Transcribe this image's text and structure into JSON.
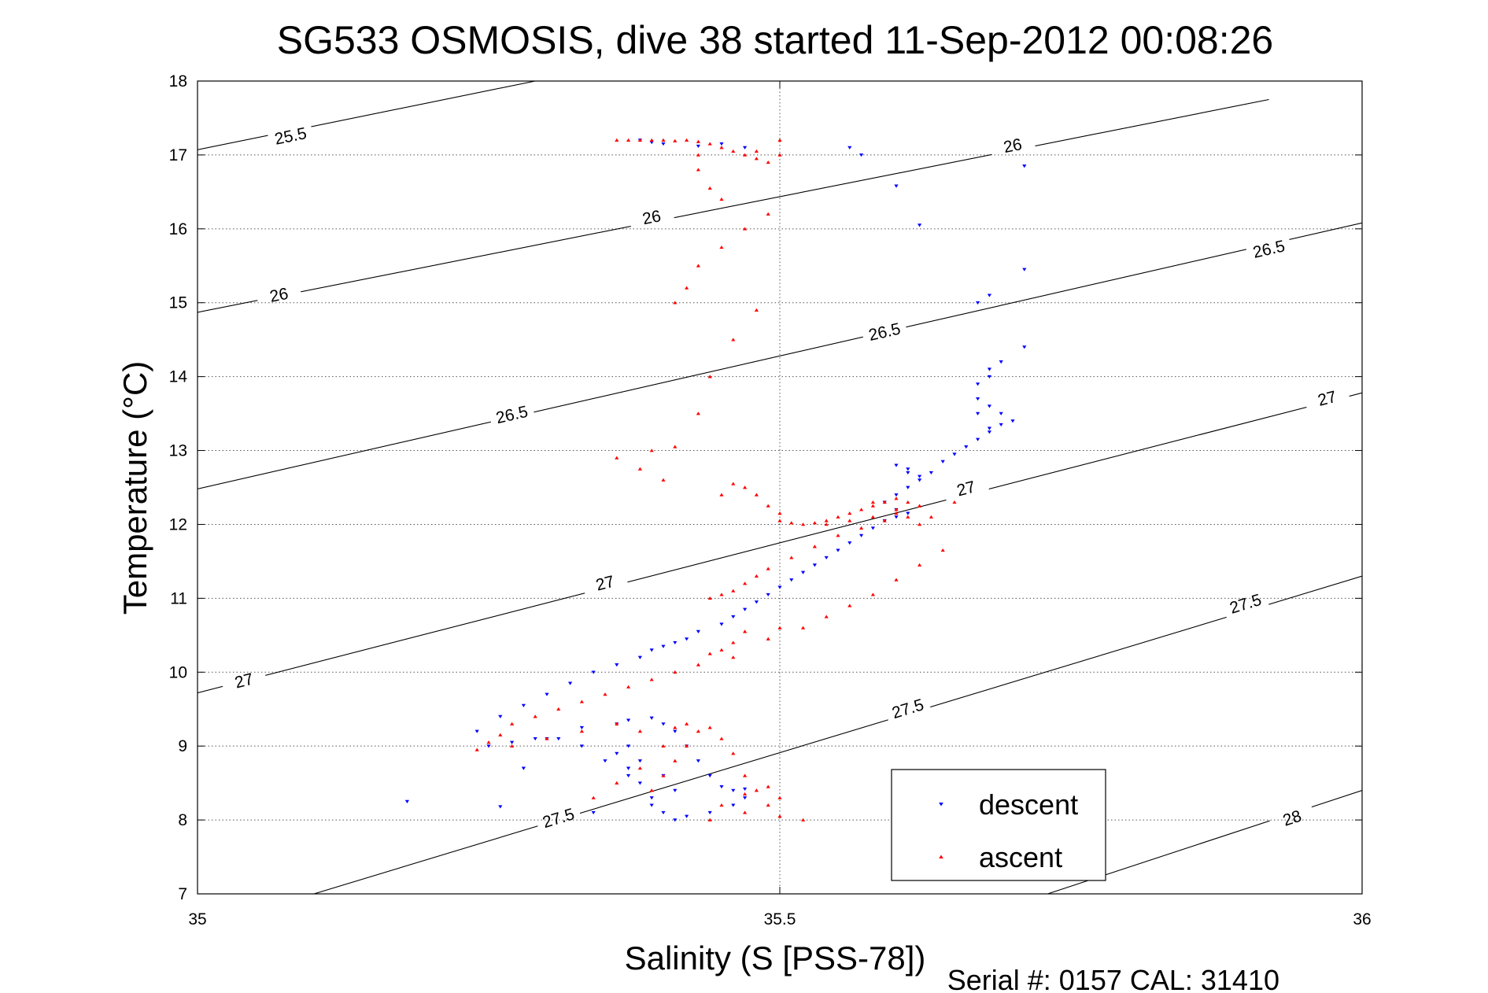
{
  "chart_data": {
    "type": "scatter",
    "title": "SG533 OSMOSIS, dive 38 started 11-Sep-2012 00:08:26",
    "xlabel": "Salinity (S [PSS-78])",
    "ylabel": "Temperature (°C)",
    "footer": "Serial #: 0157  CAL: 31410",
    "xlim": [
      35,
      36
    ],
    "ylim": [
      7,
      18
    ],
    "x_ticks": [
      35,
      35.5,
      36
    ],
    "x_tick_labels": [
      "35",
      "35.5",
      "36"
    ],
    "y_ticks": [
      7,
      8,
      9,
      10,
      11,
      12,
      13,
      14,
      15,
      16,
      17,
      18
    ],
    "y_tick_labels": [
      "7",
      "8",
      "9",
      "10",
      "11",
      "12",
      "13",
      "14",
      "15",
      "16",
      "17",
      "18"
    ],
    "grid": true,
    "legend_position": "bottom-right",
    "colors": {
      "descent": "#0000ff",
      "ascent": "#ff0000",
      "contour": "#000000"
    },
    "density_contours": [
      {
        "label": "25.5",
        "points": [
          [
            35,
            17.07
          ],
          [
            35.29,
            18.0
          ]
        ],
        "label_at": [
          [
            35.08,
            17.25
          ]
        ]
      },
      {
        "label": "26",
        "points": [
          [
            35,
            14.87
          ],
          [
            35.92,
            17.75
          ]
        ],
        "label_at": [
          [
            35.07,
            15.1
          ],
          [
            35.39,
            16.15
          ],
          [
            35.7,
            17.12
          ]
        ]
      },
      {
        "label": "26.5",
        "points": [
          [
            35,
            12.48
          ],
          [
            36,
            16.08
          ]
        ],
        "label_at": [
          [
            35.27,
            13.48
          ],
          [
            35.59,
            14.6
          ],
          [
            35.92,
            15.72
          ]
        ]
      },
      {
        "label": "27",
        "points": [
          [
            35,
            9.72
          ],
          [
            36,
            13.78
          ]
        ],
        "label_at": [
          [
            35.04,
            9.88
          ],
          [
            35.35,
            11.2
          ],
          [
            35.66,
            12.48
          ],
          [
            35.97,
            13.7
          ]
        ]
      },
      {
        "label": "27.5",
        "points": [
          [
            35.1,
            7.0
          ],
          [
            36,
            11.3
          ]
        ],
        "label_at": [
          [
            35.31,
            8.02
          ],
          [
            35.61,
            9.5
          ],
          [
            35.9,
            10.92
          ]
        ]
      },
      {
        "label": "28",
        "points": [
          [
            35.73,
            7.0
          ],
          [
            36,
            8.4
          ]
        ],
        "label_at": [
          [
            35.94,
            8.02
          ]
        ]
      }
    ],
    "series": [
      {
        "name": "descent",
        "marker": "triangle-down",
        "x": [
          35.18,
          35.26,
          35.34,
          35.28,
          35.3,
          35.33,
          35.36,
          35.37,
          35.39,
          35.4,
          35.41,
          35.42,
          35.43,
          35.44,
          35.45,
          35.46,
          35.47,
          35.47,
          35.46,
          35.44,
          35.42,
          35.41,
          35.4,
          35.39,
          35.38,
          35.37,
          35.36,
          35.37,
          35.38,
          35.4,
          35.41,
          35.39,
          35.37,
          35.35,
          35.33,
          35.31,
          35.29,
          35.27,
          35.25,
          35.24,
          35.26,
          35.28,
          35.3,
          35.32,
          35.34,
          35.36,
          35.38,
          35.39,
          35.4,
          35.41,
          35.42,
          35.43,
          35.45,
          35.46,
          35.47,
          35.48,
          35.49,
          35.5,
          35.51,
          35.52,
          35.53,
          35.54,
          35.55,
          35.56,
          35.57,
          35.58,
          35.59,
          35.6,
          35.61,
          35.6,
          35.59,
          35.6,
          35.61,
          35.62,
          35.61,
          35.6,
          35.61,
          35.62,
          35.63,
          35.64,
          35.65,
          35.66,
          35.67,
          35.68,
          35.69,
          35.7,
          35.69,
          35.68,
          35.67,
          35.67,
          35.68,
          35.69,
          35.68,
          35.67,
          35.68,
          35.71,
          35.68,
          35.67,
          35.71,
          35.62,
          35.6,
          35.57,
          35.56,
          35.47,
          35.4,
          35.43,
          35.45,
          35.39,
          35.38,
          35.71
        ],
        "y": [
          8.25,
          8.18,
          8.1,
          8.7,
          9.1,
          9.25,
          9.3,
          9.35,
          9.38,
          9.3,
          9.2,
          9.0,
          8.8,
          8.6,
          8.45,
          8.4,
          8.42,
          8.3,
          8.2,
          8.1,
          8.05,
          8.0,
          8.1,
          8.3,
          8.5,
          8.7,
          8.9,
          9.0,
          8.8,
          8.6,
          8.4,
          8.2,
          8.6,
          8.8,
          9.0,
          9.1,
          9.1,
          9.05,
          9.0,
          9.2,
          9.4,
          9.55,
          9.7,
          9.85,
          10.0,
          10.1,
          10.2,
          10.3,
          10.35,
          10.4,
          10.45,
          10.55,
          10.65,
          10.75,
          10.85,
          10.95,
          11.05,
          11.15,
          11.25,
          11.35,
          11.45,
          11.55,
          11.65,
          11.75,
          11.85,
          11.95,
          12.05,
          12.1,
          12.15,
          12.2,
          12.3,
          12.4,
          12.5,
          12.6,
          12.7,
          12.8,
          12.75,
          12.65,
          12.7,
          12.85,
          12.95,
          13.05,
          13.15,
          13.25,
          13.35,
          13.4,
          13.5,
          13.6,
          13.7,
          13.9,
          14.1,
          14.2,
          14.0,
          13.5,
          13.3,
          14.4,
          15.1,
          15.0,
          15.45,
          16.05,
          16.58,
          17.0,
          17.1,
          17.1,
          17.15,
          17.12,
          17.15,
          17.17,
          17.2,
          16.85
        ]
      },
      {
        "name": "ascent",
        "marker": "triangle-up",
        "x": [
          35.38,
          35.36,
          35.34,
          35.39,
          35.4,
          35.41,
          35.42,
          35.43,
          35.44,
          35.45,
          35.46,
          35.47,
          35.48,
          35.49,
          35.5,
          35.52,
          35.5,
          35.49,
          35.47,
          35.45,
          35.47,
          35.44,
          35.46,
          35.49,
          35.52,
          35.54,
          35.56,
          35.58,
          35.6,
          35.62,
          35.64,
          35.5,
          35.47,
          35.46,
          35.45,
          35.44,
          35.43,
          35.41,
          35.39,
          35.37,
          35.35,
          35.33,
          35.31,
          35.29,
          35.27,
          35.26,
          35.25,
          35.24,
          35.27,
          35.3,
          35.33,
          35.36,
          35.38,
          35.4,
          35.41,
          35.42,
          35.44,
          35.45,
          35.46,
          35.47,
          35.48,
          35.49,
          35.51,
          35.53,
          35.55,
          35.57,
          35.59,
          35.6,
          35.62,
          35.58,
          35.6,
          35.61,
          35.62,
          35.63,
          35.65,
          35.54,
          35.56,
          35.58,
          35.5,
          35.49,
          35.48,
          35.47,
          35.46,
          35.45,
          35.4,
          35.38,
          35.36,
          35.39,
          35.41,
          35.43,
          35.44,
          35.46,
          35.48,
          35.41,
          35.42,
          35.43,
          35.45,
          35.47,
          35.49,
          35.45,
          35.44,
          35.43,
          35.43,
          35.48,
          35.5,
          35.5
        ],
        "y": [
          8.7,
          8.5,
          8.3,
          8.4,
          8.6,
          8.8,
          9.0,
          9.2,
          9.25,
          9.1,
          8.9,
          8.6,
          8.4,
          8.2,
          8.05,
          8.0,
          8.3,
          8.45,
          8.35,
          8.2,
          8.1,
          8.0,
          10.2,
          10.45,
          10.6,
          10.75,
          10.9,
          11.05,
          11.25,
          11.45,
          11.65,
          10.6,
          10.55,
          10.4,
          10.3,
          10.25,
          10.1,
          10.0,
          9.9,
          9.8,
          9.7,
          9.6,
          9.5,
          9.4,
          9.3,
          9.15,
          9.05,
          8.95,
          9.0,
          9.1,
          9.2,
          9.3,
          9.2,
          9.0,
          9.25,
          9.3,
          11.0,
          11.05,
          11.1,
          11.2,
          11.3,
          11.4,
          11.55,
          11.7,
          11.85,
          11.95,
          12.05,
          12.15,
          12.25,
          12.3,
          12.2,
          12.1,
          12.0,
          12.1,
          12.3,
          12.0,
          12.05,
          12.1,
          12.15,
          12.25,
          12.4,
          12.5,
          12.55,
          12.4,
          12.6,
          12.75,
          12.9,
          13.0,
          13.05,
          13.5,
          14.0,
          14.5,
          14.9,
          15.0,
          15.2,
          15.5,
          15.75,
          16.0,
          16.2,
          16.4,
          16.55,
          16.8,
          17.0,
          17.05,
          17.0,
          17.2
        ]
      }
    ],
    "extra_ascent_cluster": {
      "x": [
        35.36,
        35.37,
        35.38,
        35.39,
        35.4,
        35.41,
        35.42,
        35.43,
        35.44,
        35.45,
        35.46,
        35.47,
        35.48,
        35.49,
        35.5,
        35.51,
        35.52,
        35.53,
        35.54,
        35.55,
        35.56,
        35.57,
        35.58,
        35.59,
        35.6,
        35.61,
        35.62
      ],
      "y": [
        17.2,
        17.2,
        17.2,
        17.2,
        17.2,
        17.19,
        17.2,
        17.18,
        17.15,
        17.1,
        17.05,
        17.0,
        16.95,
        16.9,
        12.05,
        12.02,
        12.0,
        12.02,
        12.05,
        12.1,
        12.15,
        12.2,
        12.25,
        12.3,
        12.35,
        12.3,
        12.25
      ]
    }
  }
}
